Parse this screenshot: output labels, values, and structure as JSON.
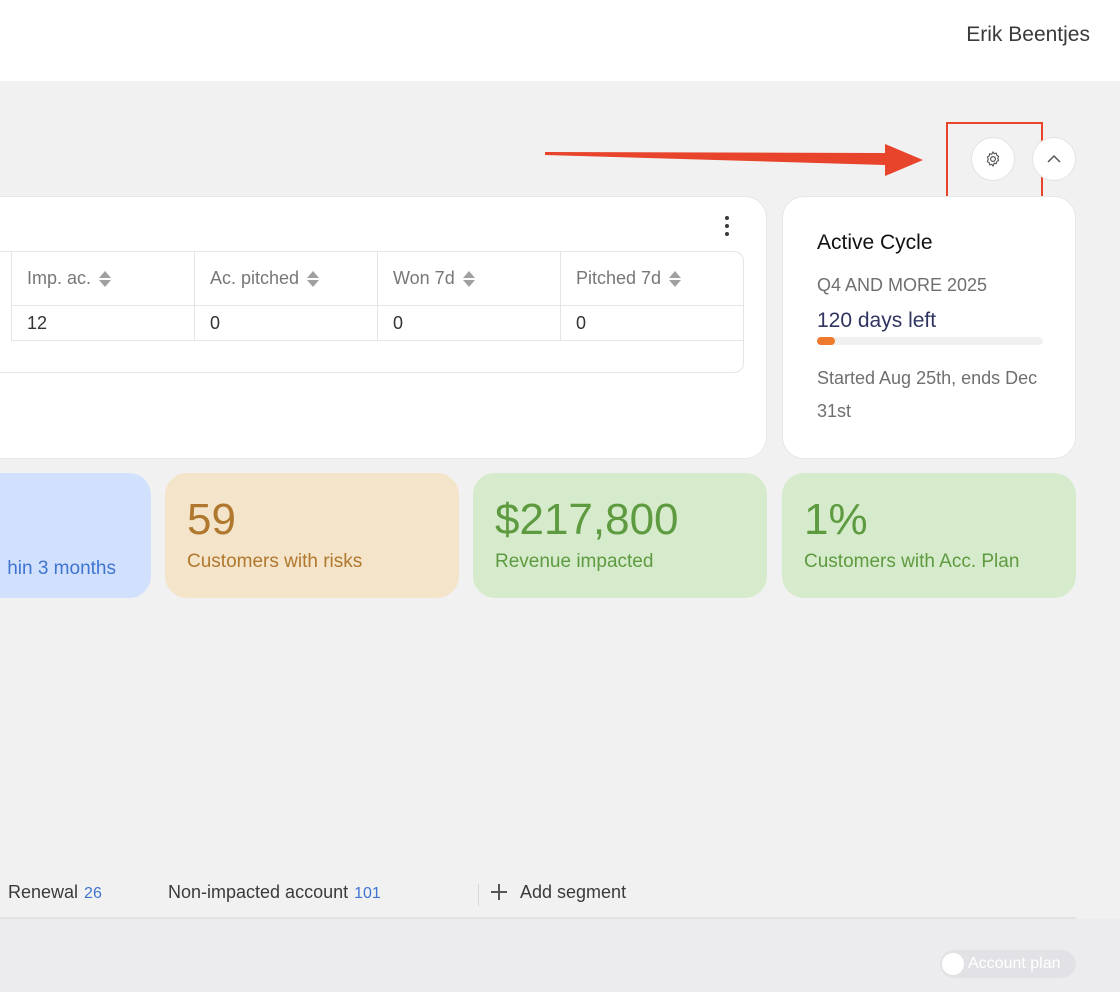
{
  "header": {
    "user_name": "Erik Beentjes"
  },
  "table": {
    "columns": [
      {
        "label": "Imp. ac.",
        "value": "12"
      },
      {
        "label": "Ac. pitched",
        "value": "0"
      },
      {
        "label": "Won 7d",
        "value": "0"
      },
      {
        "label": "Pitched 7d",
        "value": "0"
      }
    ]
  },
  "cycle": {
    "title": "Active Cycle",
    "name": "Q4 AND MORE 2025",
    "days_left": "120 days left",
    "progress_fraction": 0.08,
    "dates": "Started Aug 25th, ends Dec 31st"
  },
  "stats": {
    "renewals": {
      "label": "hin 3 months"
    },
    "risks": {
      "value": "59",
      "label": "Customers with risks"
    },
    "revenue": {
      "value": "$217,800",
      "label": "Revenue impacted"
    },
    "account_plan": {
      "value": "1%",
      "label": "Customers with Acc. Plan"
    }
  },
  "segments": {
    "items": [
      {
        "label": "Renewal",
        "count": "26"
      },
      {
        "label": "Non-impacted account",
        "count": "101"
      }
    ],
    "add_label": "Add segment"
  },
  "toggle": {
    "label": "Account plan"
  },
  "colors": {
    "annotation": "#e8432b",
    "progress": "#ef7a2e",
    "count_blue": "#3f74d1"
  }
}
